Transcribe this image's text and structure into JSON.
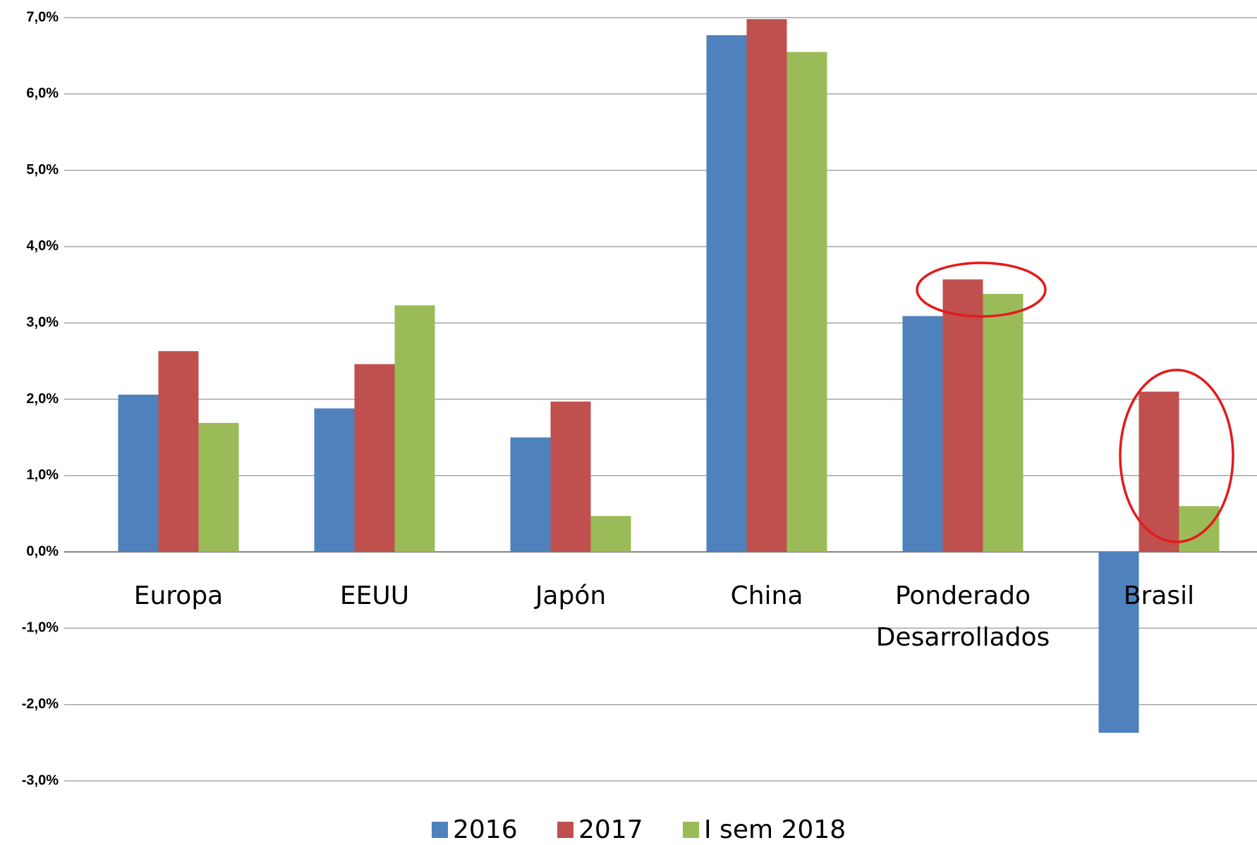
{
  "chart_data": {
    "type": "bar",
    "categories": [
      "Europa",
      "EEUU",
      "Japón",
      "China",
      "Ponderado Desarrollados",
      "Brasil"
    ],
    "series": [
      {
        "name": "2016",
        "color": "#4f81bd",
        "values": [
          2.06,
          1.88,
          1.5,
          6.77,
          3.09,
          -2.37
        ]
      },
      {
        "name": "2017",
        "color": "#c0504d",
        "values": [
          2.63,
          2.46,
          1.97,
          6.98,
          3.57,
          2.1
        ]
      },
      {
        "name": "I sem 2018",
        "color": "#9bbb59",
        "values": [
          1.69,
          3.23,
          0.47,
          6.55,
          3.38,
          0.6
        ]
      }
    ],
    "ylim": [
      -3,
      7
    ],
    "yticks": [
      {
        "value": -3,
        "label": "-3,0%"
      },
      {
        "value": -2,
        "label": "-2,0%"
      },
      {
        "value": -1,
        "label": "-1,0%"
      },
      {
        "value": 0,
        "label": "0,0%"
      },
      {
        "value": 1,
        "label": "1,0%"
      },
      {
        "value": 2,
        "label": "2,0%"
      },
      {
        "value": 3,
        "label": "3,0%"
      },
      {
        "value": 4,
        "label": "4,0%"
      },
      {
        "value": 5,
        "label": "5,0%"
      },
      {
        "value": 6,
        "label": "6,0%"
      },
      {
        "value": 7,
        "label": "7,0%"
      }
    ],
    "grid": true,
    "legend": "bottom"
  }
}
